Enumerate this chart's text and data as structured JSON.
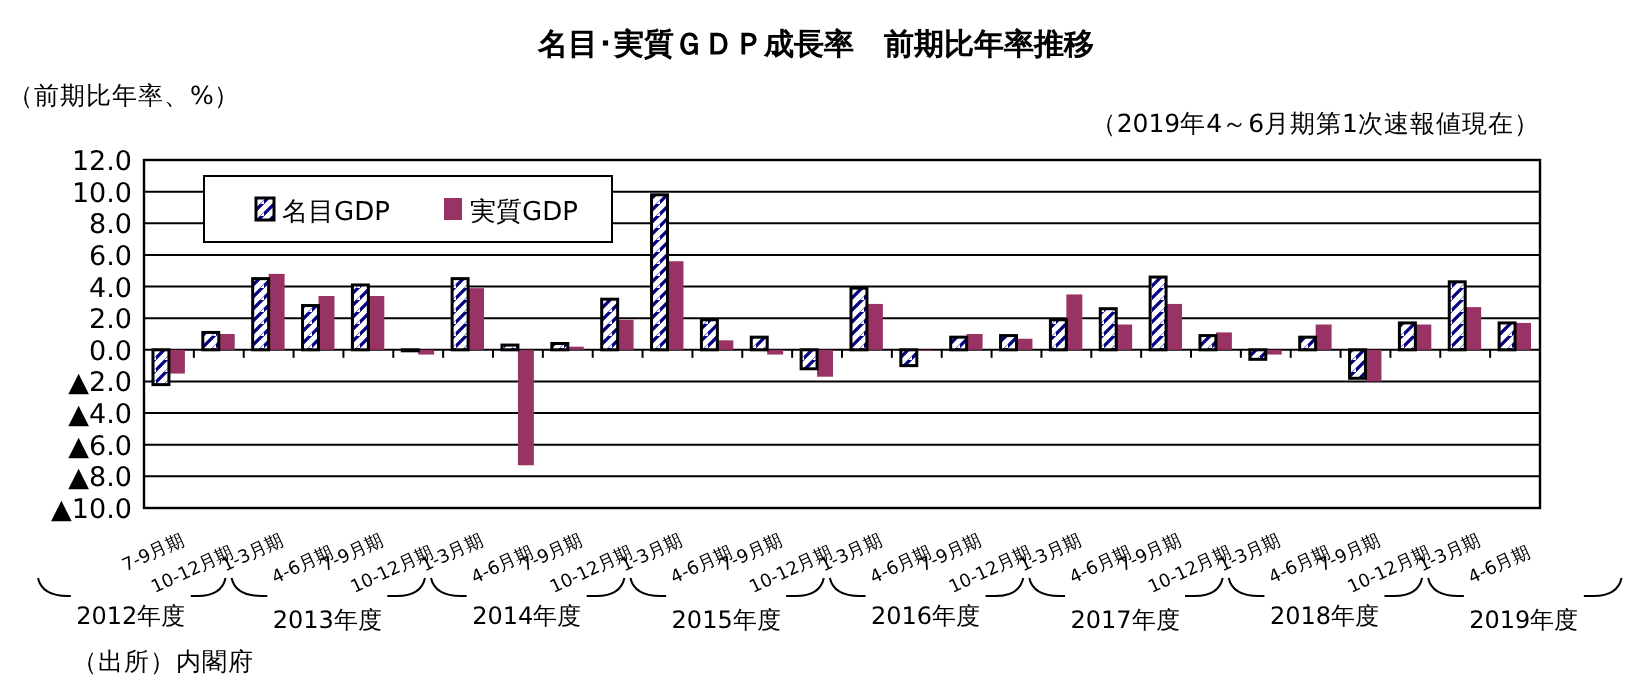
{
  "chart_data": {
    "type": "bar",
    "title": "名目･実質ＧＤＰ成長率　前期比年率推移",
    "ylabel": "（前期比年率、%）",
    "annotations": [
      "（2019年4～6月期第1次速報値現在）",
      "（出所）内閣府",
      "2012年度",
      "2013年度",
      "2014年度",
      "2015年度",
      "2016年度",
      "2017年度",
      "2018年度",
      "2019年度"
    ],
    "categories": [
      "7-9月期",
      "10-12月期",
      "1-3月期",
      "4-6月期",
      "7-9月期",
      "10-12月期",
      "1-3月期",
      "4-6月期",
      "7-9月期",
      "10-12月期",
      "1-3月期",
      "4-6月期",
      "7-9月期",
      "10-12月期",
      "1-3月期",
      "4-6月期",
      "7-9月期",
      "10-12月期",
      "1-3月期",
      "4-6月期",
      "7-9月期",
      "10-12月期",
      "1-3月期",
      "4-6月期",
      "7-9月期",
      "10-12月期",
      "1-3月期",
      "4-6月期"
    ],
    "series": [
      {
        "name": "名目GDP",
        "color": "#000080",
        "values": [
          -2.2,
          1.1,
          4.5,
          2.8,
          4.1,
          0.0,
          4.5,
          0.3,
          0.4,
          3.2,
          9.8,
          1.9,
          0.8,
          -1.2,
          3.9,
          -1.0,
          0.8,
          0.9,
          1.9,
          2.6,
          4.6,
          0.9,
          -0.6,
          0.8,
          -1.8,
          1.7,
          4.3,
          1.7
        ]
      },
      {
        "name": "実質GDP",
        "color": "#993366",
        "values": [
          -1.5,
          1.0,
          4.8,
          3.4,
          3.4,
          -0.3,
          3.9,
          -7.3,
          0.2,
          1.9,
          5.6,
          0.6,
          -0.3,
          -1.7,
          2.9,
          0.0,
          1.0,
          0.7,
          3.5,
          1.6,
          2.9,
          1.1,
          -0.3,
          1.6,
          -2.0,
          1.6,
          2.7,
          1.7
        ]
      }
    ],
    "ylim": [
      -10,
      12
    ],
    "yticks": [
      {
        "value": 12,
        "label": "12.0"
      },
      {
        "value": 10,
        "label": "10.0"
      },
      {
        "value": 8,
        "label": "8.0"
      },
      {
        "value": 6,
        "label": "6.0"
      },
      {
        "value": 4,
        "label": "4.0"
      },
      {
        "value": 2,
        "label": "2.0"
      },
      {
        "value": 0,
        "label": "0.0"
      },
      {
        "value": -2,
        "label": "▲2.0"
      },
      {
        "value": -4,
        "label": "▲4.0"
      },
      {
        "value": -6,
        "label": "▲6.0"
      },
      {
        "value": -8,
        "label": "▲8.0"
      },
      {
        "value": -10,
        "label": "▲10.0"
      }
    ],
    "grid": "y",
    "legend": "top left"
  }
}
